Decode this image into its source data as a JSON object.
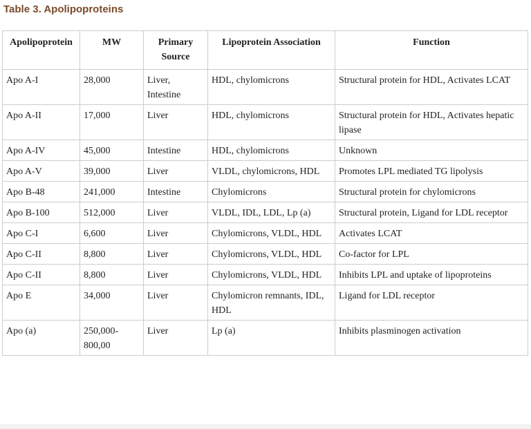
{
  "title": "Table 3. Apolipoproteins",
  "table": {
    "headers": [
      "Apolipoprotein",
      "MW",
      "Primary Source",
      "Lipoprotein Association",
      "Function"
    ],
    "rows": [
      [
        "Apo A-I",
        "28,000",
        "Liver, Intestine",
        "HDL, chylomicrons",
        "Structural protein for HDL, Activates LCAT"
      ],
      [
        "Apo A-II",
        "17,000",
        "Liver",
        "HDL, chylomicrons",
        "Structural protein for HDL, Activates hepatic lipase"
      ],
      [
        "Apo A-IV",
        "45,000",
        "Intestine",
        "HDL, chylomicrons",
        "Unknown"
      ],
      [
        "Apo A-V",
        "39,000",
        "Liver",
        "VLDL, chylomicrons, HDL",
        "Promotes LPL mediated TG lipolysis"
      ],
      [
        "Apo B-48",
        "241,000",
        "Intestine",
        "Chylomicrons",
        "Structural protein for chylomicrons"
      ],
      [
        "Apo B-100",
        "512,000",
        "Liver",
        "VLDL, IDL, LDL, Lp (a)",
        "Structural protein, Ligand for LDL receptor"
      ],
      [
        "Apo C-I",
        "6,600",
        "Liver",
        "Chylomicrons, VLDL, HDL",
        "Activates LCAT"
      ],
      [
        "Apo C-II",
        "8,800",
        "Liver",
        "Chylomicrons, VLDL, HDL",
        "Co-factor for LPL"
      ],
      [
        "Apo C-II",
        "8,800",
        "Liver",
        "Chylomicrons, VLDL, HDL",
        "Inhibits LPL and uptake of lipoproteins"
      ],
      [
        "Apo E",
        "34,000",
        "Liver",
        "Chylomicron remnants, IDL, HDL",
        "Ligand for LDL receptor"
      ],
      [
        "Apo (a)",
        "250,000-800,00",
        "Liver",
        "Lp (a)",
        "Inhibits plasminogen activation"
      ]
    ]
  }
}
